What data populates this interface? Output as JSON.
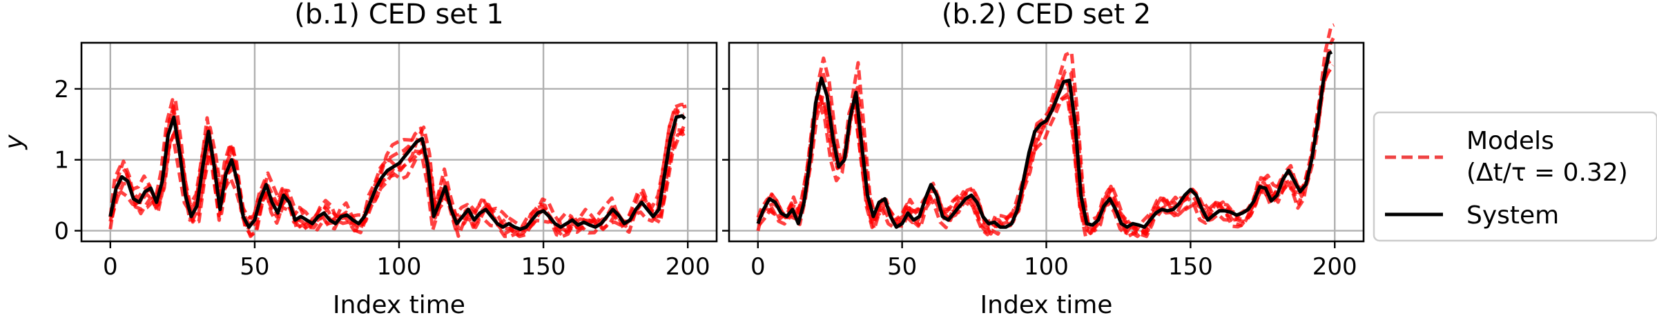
{
  "chart_data": [
    {
      "type": "line",
      "title": "(b.1) CED set 1",
      "xlabel": "Index time",
      "ylabel": "y",
      "xlim": [
        -10,
        210
      ],
      "ylim": [
        -0.15,
        2.65
      ],
      "xticks": [
        0,
        50,
        100,
        150,
        200
      ],
      "yticks": [
        0,
        1,
        2
      ],
      "grid": true,
      "series": [
        {
          "name": "System",
          "points": [
            [
              0,
              0.2
            ],
            [
              2,
              0.6
            ],
            [
              4,
              0.76
            ],
            [
              6,
              0.7
            ],
            [
              8,
              0.45
            ],
            [
              10,
              0.4
            ],
            [
              12,
              0.55
            ],
            [
              14,
              0.6
            ],
            [
              16,
              0.4
            ],
            [
              18,
              0.7
            ],
            [
              20,
              1.35
            ],
            [
              22,
              1.6
            ],
            [
              24,
              1.1
            ],
            [
              26,
              0.5
            ],
            [
              28,
              0.2
            ],
            [
              30,
              0.35
            ],
            [
              32,
              0.9
            ],
            [
              34,
              1.4
            ],
            [
              36,
              0.9
            ],
            [
              38,
              0.3
            ],
            [
              40,
              0.8
            ],
            [
              42,
              1.0
            ],
            [
              44,
              0.7
            ],
            [
              46,
              0.2
            ],
            [
              48,
              0.05
            ],
            [
              50,
              0.15
            ],
            [
              52,
              0.45
            ],
            [
              54,
              0.65
            ],
            [
              56,
              0.4
            ],
            [
              58,
              0.25
            ],
            [
              60,
              0.5
            ],
            [
              62,
              0.4
            ],
            [
              64,
              0.15
            ],
            [
              66,
              0.2
            ],
            [
              68,
              0.15
            ],
            [
              70,
              0.1
            ],
            [
              72,
              0.2
            ],
            [
              74,
              0.25
            ],
            [
              76,
              0.15
            ],
            [
              78,
              0.1
            ],
            [
              80,
              0.2
            ],
            [
              82,
              0.22
            ],
            [
              84,
              0.15
            ],
            [
              86,
              0.1
            ],
            [
              88,
              0.2
            ],
            [
              90,
              0.4
            ],
            [
              92,
              0.6
            ],
            [
              94,
              0.75
            ],
            [
              96,
              0.85
            ],
            [
              98,
              0.9
            ],
            [
              100,
              0.95
            ],
            [
              102,
              1.05
            ],
            [
              104,
              1.15
            ],
            [
              106,
              1.25
            ],
            [
              108,
              1.3
            ],
            [
              110,
              0.9
            ],
            [
              112,
              0.2
            ],
            [
              114,
              0.4
            ],
            [
              116,
              0.62
            ],
            [
              118,
              0.3
            ],
            [
              120,
              0.1
            ],
            [
              122,
              0.2
            ],
            [
              124,
              0.3
            ],
            [
              126,
              0.15
            ],
            [
              128,
              0.25
            ],
            [
              130,
              0.3
            ],
            [
              132,
              0.2
            ],
            [
              134,
              0.1
            ],
            [
              136,
              0.05
            ],
            [
              138,
              0.1
            ],
            [
              140,
              0.05
            ],
            [
              142,
              0.02
            ],
            [
              144,
              0.05
            ],
            [
              146,
              0.15
            ],
            [
              148,
              0.25
            ],
            [
              150,
              0.28
            ],
            [
              152,
              0.2
            ],
            [
              154,
              0.1
            ],
            [
              156,
              0.05
            ],
            [
              158,
              0.1
            ],
            [
              160,
              0.15
            ],
            [
              162,
              0.08
            ],
            [
              164,
              0.12
            ],
            [
              166,
              0.08
            ],
            [
              168,
              0.05
            ],
            [
              170,
              0.1
            ],
            [
              172,
              0.2
            ],
            [
              174,
              0.3
            ],
            [
              176,
              0.22
            ],
            [
              178,
              0.1
            ],
            [
              180,
              0.15
            ],
            [
              182,
              0.3
            ],
            [
              184,
              0.4
            ],
            [
              186,
              0.3
            ],
            [
              188,
              0.2
            ],
            [
              190,
              0.3
            ],
            [
              192,
              0.8
            ],
            [
              194,
              1.3
            ],
            [
              196,
              1.6
            ],
            [
              198,
              1.62
            ],
            [
              199,
              1.58
            ]
          ]
        }
      ]
    },
    {
      "type": "line",
      "title": "(b.2) CED set 2",
      "xlabel": "Index time",
      "ylabel": "",
      "xlim": [
        -10,
        210
      ],
      "ylim": [
        -0.15,
        2.65
      ],
      "xticks": [
        0,
        50,
        100,
        150,
        200
      ],
      "yticks": [
        0,
        1,
        2
      ],
      "grid": true,
      "series": [
        {
          "name": "System",
          "points": [
            [
              0,
              0.1
            ],
            [
              2,
              0.3
            ],
            [
              4,
              0.45
            ],
            [
              6,
              0.4
            ],
            [
              8,
              0.25
            ],
            [
              10,
              0.2
            ],
            [
              12,
              0.3
            ],
            [
              14,
              0.1
            ],
            [
              16,
              0.4
            ],
            [
              18,
              1.0
            ],
            [
              20,
              1.8
            ],
            [
              22,
              2.15
            ],
            [
              24,
              1.9
            ],
            [
              26,
              1.3
            ],
            [
              28,
              0.9
            ],
            [
              30,
              1.0
            ],
            [
              32,
              1.6
            ],
            [
              34,
              1.95
            ],
            [
              36,
              1.2
            ],
            [
              38,
              0.5
            ],
            [
              40,
              0.2
            ],
            [
              42,
              0.4
            ],
            [
              44,
              0.45
            ],
            [
              46,
              0.2
            ],
            [
              48,
              0.05
            ],
            [
              50,
              0.1
            ],
            [
              52,
              0.25
            ],
            [
              54,
              0.15
            ],
            [
              56,
              0.2
            ],
            [
              58,
              0.45
            ],
            [
              60,
              0.65
            ],
            [
              62,
              0.5
            ],
            [
              64,
              0.2
            ],
            [
              66,
              0.15
            ],
            [
              68,
              0.25
            ],
            [
              70,
              0.35
            ],
            [
              72,
              0.45
            ],
            [
              74,
              0.5
            ],
            [
              76,
              0.4
            ],
            [
              78,
              0.2
            ],
            [
              80,
              0.1
            ],
            [
              82,
              0.12
            ],
            [
              84,
              0.05
            ],
            [
              86,
              0.05
            ],
            [
              88,
              0.1
            ],
            [
              90,
              0.3
            ],
            [
              92,
              0.7
            ],
            [
              94,
              1.1
            ],
            [
              96,
              1.4
            ],
            [
              98,
              1.5
            ],
            [
              100,
              1.55
            ],
            [
              102,
              1.7
            ],
            [
              104,
              1.9
            ],
            [
              106,
              2.1
            ],
            [
              108,
              2.12
            ],
            [
              110,
              1.5
            ],
            [
              112,
              0.5
            ],
            [
              114,
              0.1
            ],
            [
              116,
              0.08
            ],
            [
              118,
              0.15
            ],
            [
              120,
              0.35
            ],
            [
              122,
              0.45
            ],
            [
              124,
              0.3
            ],
            [
              126,
              0.1
            ],
            [
              128,
              0.05
            ],
            [
              130,
              0.1
            ],
            [
              132,
              0.08
            ],
            [
              134,
              0.05
            ],
            [
              136,
              0.15
            ],
            [
              138,
              0.25
            ],
            [
              140,
              0.3
            ],
            [
              142,
              0.28
            ],
            [
              144,
              0.3
            ],
            [
              146,
              0.38
            ],
            [
              148,
              0.5
            ],
            [
              150,
              0.58
            ],
            [
              152,
              0.5
            ],
            [
              154,
              0.3
            ],
            [
              156,
              0.15
            ],
            [
              158,
              0.22
            ],
            [
              160,
              0.28
            ],
            [
              162,
              0.28
            ],
            [
              164,
              0.26
            ],
            [
              166,
              0.22
            ],
            [
              168,
              0.25
            ],
            [
              170,
              0.3
            ],
            [
              172,
              0.42
            ],
            [
              174,
              0.62
            ],
            [
              176,
              0.6
            ],
            [
              178,
              0.42
            ],
            [
              180,
              0.5
            ],
            [
              182,
              0.72
            ],
            [
              184,
              0.85
            ],
            [
              186,
              0.7
            ],
            [
              188,
              0.55
            ],
            [
              190,
              0.65
            ],
            [
              192,
              1.0
            ],
            [
              194,
              1.5
            ],
            [
              196,
              2.1
            ],
            [
              198,
              2.5
            ],
            [
              199,
              2.52
            ]
          ]
        }
      ]
    }
  ],
  "legend": {
    "models_label_line1": "Models",
    "models_label_line2": "(Δt/τ = 0.32)",
    "system_label": "System"
  },
  "colors": {
    "system": "#000000",
    "models": "#ff0000",
    "legend_models": "#ef4444"
  }
}
